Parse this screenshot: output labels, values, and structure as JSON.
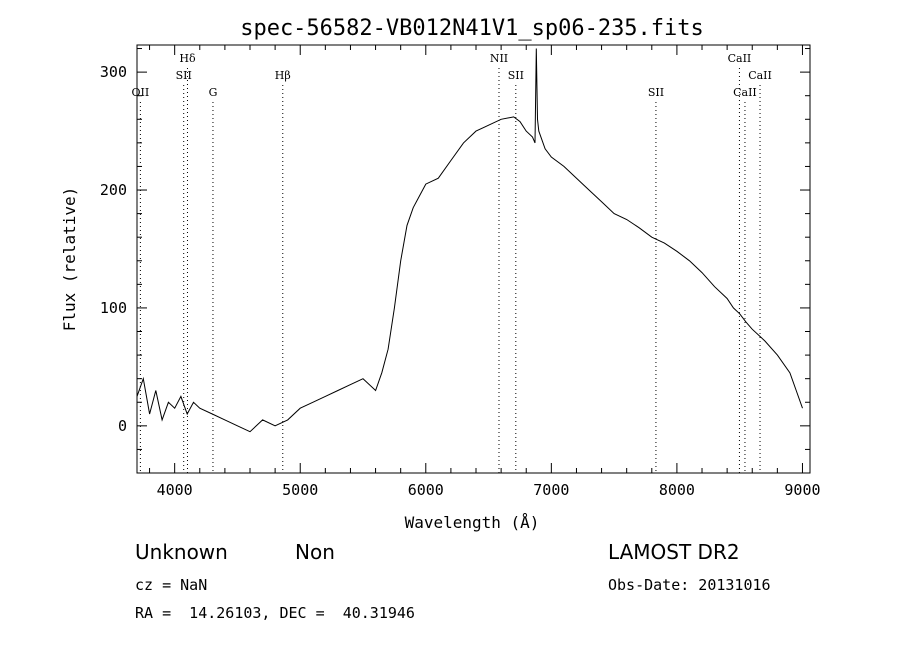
{
  "chart_data": {
    "type": "line",
    "title": "spec-56582-VB012N41V1_sp06-235.fits",
    "xlabel": "Wavelength (Å)",
    "ylabel": "Flux (relative)",
    "xlim": [
      3700,
      9060
    ],
    "ylim": [
      -40,
      323
    ],
    "xticks": [
      4000,
      5000,
      6000,
      7000,
      8000,
      9000
    ],
    "xtick_labels": [
      "4000",
      "5000",
      "6000",
      "7000",
      "8000",
      "9000"
    ],
    "yticks": [
      0,
      100,
      200,
      300
    ],
    "ytick_labels": [
      "0",
      "100",
      "200",
      "300"
    ],
    "grid": false,
    "line_color": "#000000",
    "series": [
      {
        "x": [
          3700,
          3750,
          3800,
          3850,
          3900,
          3950,
          4000,
          4050,
          4100,
          4150,
          4200,
          4300,
          4400,
          4500,
          4600,
          4700,
          4800,
          4900,
          5000,
          5100,
          5200,
          5300,
          5400,
          5500,
          5600,
          5650,
          5700,
          5750,
          5800,
          5850,
          5900,
          5950,
          6000,
          6100,
          6200,
          6300,
          6400,
          6500,
          6600,
          6700,
          6750,
          6800,
          6850,
          6870,
          6880,
          6890,
          6900,
          6950,
          7000,
          7100,
          7200,
          7300,
          7400,
          7500,
          7600,
          7700,
          7800,
          7900,
          8000,
          8100,
          8200,
          8300,
          8400,
          8450,
          8500,
          8550,
          8600,
          8700,
          8800,
          8900,
          8950,
          9000
        ],
        "y": [
          25,
          40,
          10,
          30,
          5,
          20,
          15,
          25,
          10,
          20,
          15,
          10,
          5,
          0,
          -5,
          5,
          0,
          5,
          15,
          20,
          25,
          30,
          35,
          40,
          30,
          45,
          65,
          100,
          140,
          170,
          185,
          195,
          205,
          210,
          225,
          240,
          250,
          255,
          260,
          262,
          258,
          250,
          245,
          240,
          320,
          260,
          250,
          235,
          228,
          220,
          210,
          200,
          190,
          180,
          175,
          168,
          160,
          155,
          148,
          140,
          130,
          118,
          108,
          100,
          95,
          88,
          82,
          72,
          60,
          45,
          30,
          15
        ]
      }
    ],
    "annotations": [
      {
        "label": "OII",
        "x": 3727,
        "row": 3
      },
      {
        "label": "Hδ",
        "x": 4102,
        "row": 1
      },
      {
        "label": "SII",
        "x": 4072,
        "row": 2
      },
      {
        "label": "G",
        "x": 4305,
        "row": 3
      },
      {
        "label": "Hβ",
        "x": 4861,
        "row": 2
      },
      {
        "label": "NII",
        "x": 6583,
        "row": 1
      },
      {
        "label": "SII",
        "x": 6717,
        "row": 2
      },
      {
        "label": "SII",
        "x": 7833,
        "row": 3
      },
      {
        "label": "CaII",
        "x": 8498,
        "row": 1
      },
      {
        "label": "CaII",
        "x": 8542,
        "row": 3
      },
      {
        "label": "CaII",
        "x": 8662,
        "row": 2
      }
    ]
  },
  "info": {
    "class_label": "Unknown",
    "subclass_label": "Non",
    "survey": "LAMOST DR2",
    "cz": "cz = NaN",
    "obs_date": "Obs-Date: 20131016",
    "radec": "RA =  14.26103, DEC =  40.31946"
  }
}
